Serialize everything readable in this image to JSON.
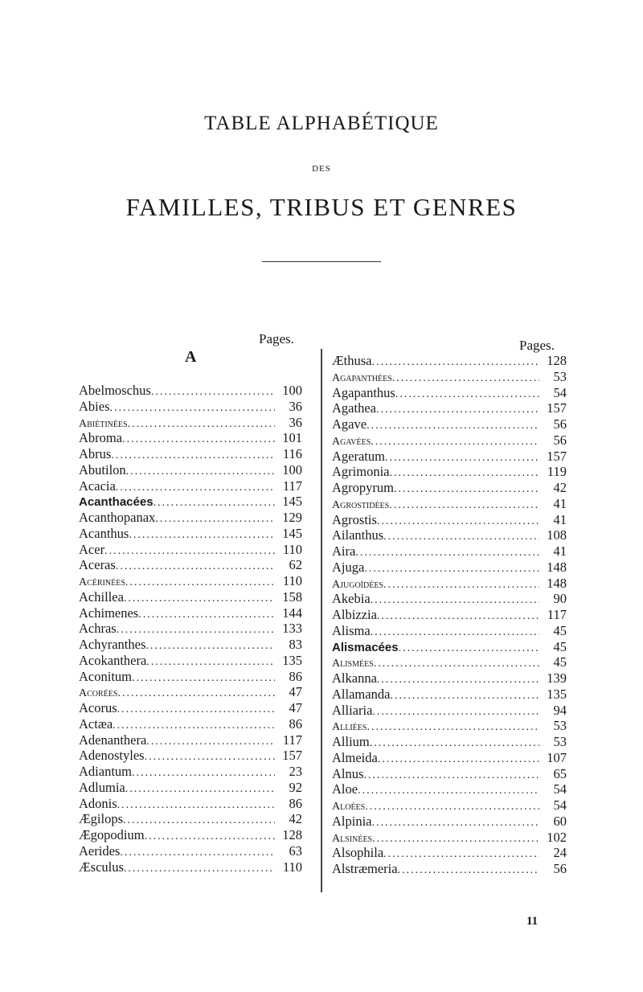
{
  "title_line1": "TABLE ALPHABÉTIQUE",
  "title_des": "DES",
  "title_line2": "FAMILLES, TRIBUS ET GENRES",
  "pages_label": "Pages.",
  "section_letter": "A",
  "page_number": "11",
  "left_column": [
    {
      "name": "Abelmoschus",
      "page": "100",
      "style": "normal"
    },
    {
      "name": "Abies",
      "page": "36",
      "style": "normal"
    },
    {
      "name": "Abiétinées",
      "page": "36",
      "style": "smallcaps"
    },
    {
      "name": "Abroma",
      "page": "101",
      "style": "normal"
    },
    {
      "name": "Abrus",
      "page": "116",
      "style": "normal"
    },
    {
      "name": "Abutilon",
      "page": "100",
      "style": "normal"
    },
    {
      "name": "Acacia",
      "page": "117",
      "style": "normal"
    },
    {
      "name": "Acanthacées",
      "page": "145",
      "style": "bold"
    },
    {
      "name": "Acanthopanax",
      "page": "129",
      "style": "normal"
    },
    {
      "name": "Acanthus",
      "page": "145",
      "style": "normal"
    },
    {
      "name": "Acer",
      "page": "110",
      "style": "normal"
    },
    {
      "name": "Aceras",
      "page": "62",
      "style": "normal"
    },
    {
      "name": "Acérinées",
      "page": "110",
      "style": "smallcaps"
    },
    {
      "name": "Achillea",
      "page": "158",
      "style": "normal"
    },
    {
      "name": "Achimenes",
      "page": "144",
      "style": "normal"
    },
    {
      "name": "Achras",
      "page": "133",
      "style": "normal"
    },
    {
      "name": "Achyranthes",
      "page": "83",
      "style": "normal"
    },
    {
      "name": "Acokanthera",
      "page": "135",
      "style": "normal"
    },
    {
      "name": "Aconitum",
      "page": "86",
      "style": "normal"
    },
    {
      "name": "Acorées",
      "page": "47",
      "style": "smallcaps"
    },
    {
      "name": "Acorus",
      "page": "47",
      "style": "normal"
    },
    {
      "name": "Actæa",
      "page": "86",
      "style": "normal"
    },
    {
      "name": "Adenanthera",
      "page": "117",
      "style": "normal"
    },
    {
      "name": "Adenostyles",
      "page": "157",
      "style": "normal"
    },
    {
      "name": "Adiantum",
      "page": "23",
      "style": "normal"
    },
    {
      "name": "Adlumia",
      "page": "92",
      "style": "normal"
    },
    {
      "name": "Adonis",
      "page": "86",
      "style": "normal"
    },
    {
      "name": "Ægilops",
      "page": "42",
      "style": "normal"
    },
    {
      "name": "Ægopodium",
      "page": "128",
      "style": "normal"
    },
    {
      "name": "Aerides",
      "page": "63",
      "style": "normal"
    },
    {
      "name": "Æsculus",
      "page": "110",
      "style": "normal"
    }
  ],
  "right_column": [
    {
      "name": "Æthusa",
      "page": "128",
      "style": "normal"
    },
    {
      "name": "Agapanthées",
      "page": "53",
      "style": "smallcaps"
    },
    {
      "name": "Agapanthus",
      "page": "54",
      "style": "normal"
    },
    {
      "name": "Agathea",
      "page": "157",
      "style": "normal"
    },
    {
      "name": "Agave",
      "page": "56",
      "style": "normal"
    },
    {
      "name": "Agavées",
      "page": "56",
      "style": "smallcaps"
    },
    {
      "name": "Ageratum",
      "page": "157",
      "style": "normal"
    },
    {
      "name": "Agrimonia",
      "page": "119",
      "style": "normal"
    },
    {
      "name": "Agropyrum",
      "page": "42",
      "style": "normal"
    },
    {
      "name": "Agrostidées",
      "page": "41",
      "style": "smallcaps"
    },
    {
      "name": "Agrostis",
      "page": "41",
      "style": "normal"
    },
    {
      "name": "Ailanthus",
      "page": "108",
      "style": "normal"
    },
    {
      "name": "Aira",
      "page": "41",
      "style": "normal"
    },
    {
      "name": "Ajuga",
      "page": "148",
      "style": "normal"
    },
    {
      "name": "Ajugoïdées",
      "page": "148",
      "style": "smallcaps"
    },
    {
      "name": "Akebia",
      "page": "90",
      "style": "normal"
    },
    {
      "name": "Albizzia",
      "page": "117",
      "style": "normal"
    },
    {
      "name": "Alisma",
      "page": "45",
      "style": "normal"
    },
    {
      "name": "Alismacées",
      "page": "45",
      "style": "bold"
    },
    {
      "name": "Alismées",
      "page": "45",
      "style": "smallcaps"
    },
    {
      "name": "Alkanna",
      "page": "139",
      "style": "normal"
    },
    {
      "name": "Allamanda",
      "page": "135",
      "style": "normal"
    },
    {
      "name": "Alliaria",
      "page": "94",
      "style": "normal"
    },
    {
      "name": "Alliées",
      "page": "53",
      "style": "smallcaps"
    },
    {
      "name": "Allium",
      "page": "53",
      "style": "normal"
    },
    {
      "name": "Almeida",
      "page": "107",
      "style": "normal"
    },
    {
      "name": "Alnus",
      "page": "65",
      "style": "normal"
    },
    {
      "name": "Aloe",
      "page": "54",
      "style": "normal"
    },
    {
      "name": "Aloées",
      "page": "54",
      "style": "smallcaps"
    },
    {
      "name": "Alpinia",
      "page": "60",
      "style": "normal"
    },
    {
      "name": "Alsinées",
      "page": "102",
      "style": "smallcaps"
    },
    {
      "name": "Alsophila",
      "page": "24",
      "style": "normal"
    },
    {
      "name": "Alstræmeria",
      "page": "56",
      "style": "normal"
    }
  ]
}
